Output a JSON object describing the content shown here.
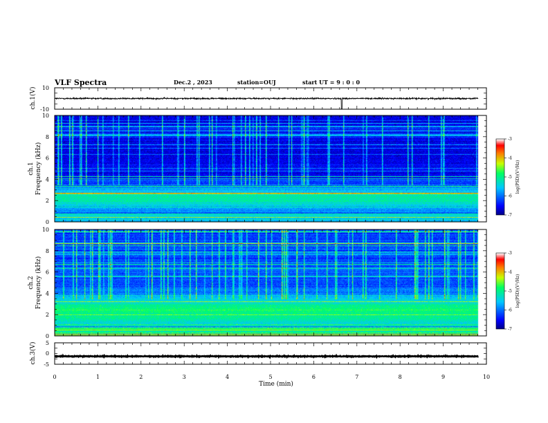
{
  "header": {
    "title": "VLF Spectra",
    "date": "Dec.2 , 2023",
    "station": "station=OUJ",
    "start_time": "start  UT =   9 : 0  : 0"
  },
  "chart_data": {
    "type": "heatmap",
    "xlabel": "Time  (min)",
    "x_ticks": [
      "0",
      "1",
      "2",
      "3",
      "4",
      "5",
      "6",
      "7",
      "8",
      "9",
      "10"
    ],
    "xlim": [
      0,
      10
    ],
    "data_end_min": 9.8,
    "panels": [
      {
        "id": "ch1-waveform",
        "type": "line",
        "ylabel": "ch.1(V)",
        "y_ticks": [
          "10",
          "-10"
        ],
        "ylim": [
          -10,
          10
        ],
        "baseline_v": 0,
        "noise_amplitude_v": 1.2,
        "spike_at_min": 6.65,
        "spike_to_v": -10
      },
      {
        "id": "ch1-spectrogram",
        "type": "heatmap",
        "ylabel_channel": "ch.1",
        "ylabel": "Frequency  (kHz)",
        "y_ticks": [
          "0",
          "2",
          "4",
          "6",
          "8",
          "10"
        ],
        "ylim": [
          0,
          10
        ],
        "z_label": "log(PSD)(V²/Hz)",
        "z_ticks": [
          "-3",
          "-4",
          "-5",
          "-6",
          "-7"
        ],
        "zlim": [
          -7,
          -3
        ],
        "background_log_psd": -6.6,
        "band_center_khz": 2.2,
        "band_width_khz": 1.3,
        "band_peak_log_psd": -5.1,
        "burst_count": 55
      },
      {
        "id": "ch2-spectrogram",
        "type": "heatmap",
        "ylabel_channel": "ch.2",
        "ylabel": "Frequency  (kHz)",
        "y_ticks": [
          "0",
          "2",
          "4",
          "6",
          "8",
          "10"
        ],
        "ylim": [
          0,
          10
        ],
        "z_label": "log(PSD)(V²/Hz)",
        "z_ticks": [
          "-3",
          "-4",
          "-5",
          "-6",
          "-7"
        ],
        "zlim": [
          -7,
          -3
        ],
        "background_log_psd": -6.2,
        "band_center_khz": 2.3,
        "band_width_khz": 1.5,
        "band_peak_log_psd": -4.9,
        "burst_count": 75
      },
      {
        "id": "ch3-waveform",
        "type": "line",
        "ylabel": "ch.3(V)",
        "y_ticks": [
          "5",
          "0",
          "-5"
        ],
        "ylim": [
          -5,
          5
        ],
        "baseline_v": -1.3,
        "noise_amplitude_v": 0.25
      }
    ]
  }
}
